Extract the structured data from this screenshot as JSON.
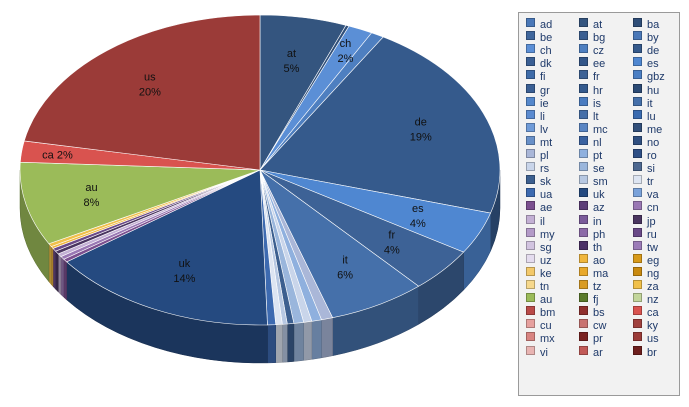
{
  "chart_data": {
    "type": "pie",
    "title": "",
    "style": "3d-exploded-perspective",
    "legend_position": "right",
    "legend_items": [
      {
        "label": "ad",
        "color": "#4a78b8"
      },
      {
        "label": "at",
        "color": "#34557f"
      },
      {
        "label": "ba",
        "color": "#2f4e78"
      },
      {
        "label": "be",
        "color": "#3f669c"
      },
      {
        "label": "bg",
        "color": "#3b5f92"
      },
      {
        "label": "by",
        "color": "#4a78b8"
      },
      {
        "label": "ch",
        "color": "#5b8fd6"
      },
      {
        "label": "cz",
        "color": "#4e7fc0"
      },
      {
        "label": "de",
        "color": "#355a8c"
      },
      {
        "label": "dk",
        "color": "#3a5f94"
      },
      {
        "label": "ee",
        "color": "#335689"
      },
      {
        "label": "es",
        "color": "#4f87d1"
      },
      {
        "label": "fi",
        "color": "#3e6ba8"
      },
      {
        "label": "fr",
        "color": "#3d6296"
      },
      {
        "label": "gbz",
        "color": "#4b7fc4"
      },
      {
        "label": "gr",
        "color": "#3a5f94"
      },
      {
        "label": "hr",
        "color": "#345a8e"
      },
      {
        "label": "hu",
        "color": "#2b4a75"
      },
      {
        "label": "ie",
        "color": "#5588cc"
      },
      {
        "label": "is",
        "color": "#4a7cc0"
      },
      {
        "label": "it",
        "color": "#4570aa"
      },
      {
        "label": "li",
        "color": "#5b8bd0"
      },
      {
        "label": "lt",
        "color": "#466fa8"
      },
      {
        "label": "lu",
        "color": "#3a6bb0"
      },
      {
        "label": "lv",
        "color": "#6f9bd8"
      },
      {
        "label": "mc",
        "color": "#5a86c4"
      },
      {
        "label": "me",
        "color": "#324f7a"
      },
      {
        "label": "mt",
        "color": "#6890c8"
      },
      {
        "label": "nl",
        "color": "#3a62a0"
      },
      {
        "label": "no",
        "color": "#2f4f80"
      },
      {
        "label": "pl",
        "color": "#aab7d8"
      },
      {
        "label": "pt",
        "color": "#8fb0de"
      },
      {
        "label": "ro",
        "color": "#2e4f86"
      },
      {
        "label": "rs",
        "color": "#c9d5ea"
      },
      {
        "label": "se",
        "color": "#9ab6dc"
      },
      {
        "label": "si",
        "color": "#4d6890"
      },
      {
        "label": "sk",
        "color": "#3c5f8f"
      },
      {
        "label": "sm",
        "color": "#b7c8e2"
      },
      {
        "label": "tr",
        "color": "#dde5f2"
      },
      {
        "label": "ua",
        "color": "#3d6ab0"
      },
      {
        "label": "uk",
        "color": "#254a80"
      },
      {
        "label": "va",
        "color": "#7aa2da"
      },
      {
        "label": "ae",
        "color": "#7b4f8f"
      },
      {
        "label": "az",
        "color": "#5d3d78"
      },
      {
        "label": "cn",
        "color": "#9a78b4"
      },
      {
        "label": "il",
        "color": "#c3b0d4"
      },
      {
        "label": "in",
        "color": "#7a5a9a"
      },
      {
        "label": "jp",
        "color": "#4a3560"
      },
      {
        "label": "my",
        "color": "#b39ac8"
      },
      {
        "label": "ph",
        "color": "#8c6aa8"
      },
      {
        "label": "ru",
        "color": "#6a4a88"
      },
      {
        "label": "sg",
        "color": "#d2c4e0"
      },
      {
        "label": "th",
        "color": "#4b2f66"
      },
      {
        "label": "tw",
        "color": "#9c7cb8"
      },
      {
        "label": "uz",
        "color": "#e4dcee"
      },
      {
        "label": "ao",
        "color": "#f0b63c"
      },
      {
        "label": "eg",
        "color": "#d89a1a"
      },
      {
        "label": "ke",
        "color": "#f3c96a"
      },
      {
        "label": "ma",
        "color": "#e8a82a"
      },
      {
        "label": "ng",
        "color": "#c98a10"
      },
      {
        "label": "tn",
        "color": "#f6d88c"
      },
      {
        "label": "tz",
        "color": "#d99b22"
      },
      {
        "label": "za",
        "color": "#f0c04a"
      },
      {
        "label": "au",
        "color": "#9bbb59"
      },
      {
        "label": "fj",
        "color": "#5a7a2a"
      },
      {
        "label": "nz",
        "color": "#c3d69b"
      },
      {
        "label": "bm",
        "color": "#b94a48"
      },
      {
        "label": "bs",
        "color": "#8f2f2d"
      },
      {
        "label": "ca",
        "color": "#d9534f"
      },
      {
        "label": "cu",
        "color": "#e6a09e"
      },
      {
        "label": "cw",
        "color": "#c97370"
      },
      {
        "label": "ky",
        "color": "#a0413e"
      },
      {
        "label": "mx",
        "color": "#d88481"
      },
      {
        "label": "pr",
        "color": "#7a2220"
      },
      {
        "label": "us",
        "color": "#9b3b38"
      },
      {
        "label": "vi",
        "color": "#e8b4b2"
      },
      {
        "label": "ar",
        "color": "#c25a57"
      },
      {
        "label": "br",
        "color": "#6e1f1d"
      }
    ],
    "slices": [
      {
        "label": "at",
        "value": 5.3,
        "color": "#34557f",
        "text": "at\n5%"
      },
      {
        "label": "ba",
        "value": 0.2,
        "color": "#2f4e78"
      },
      {
        "label": "ch",
        "value": 1.5,
        "color": "#5b8fd6",
        "text": "ch\n2%"
      },
      {
        "label": "cz",
        "value": 0.8,
        "color": "#4e7fc0"
      },
      {
        "label": "de",
        "value": 19.0,
        "color": "#355a8c",
        "text": "de\n19%"
      },
      {
        "label": "es",
        "value": 4.0,
        "color": "#4f87d1",
        "text": "es\n4%"
      },
      {
        "label": "fr",
        "value": 4.2,
        "color": "#3d6296",
        "text": "fr\n4%"
      },
      {
        "label": "it",
        "value": 6.0,
        "color": "#4570aa",
        "text": "it\n6%"
      },
      {
        "label": "pl",
        "value": 0.7,
        "color": "#aab7d8"
      },
      {
        "label": "pt",
        "value": 0.6,
        "color": "#8fb0de"
      },
      {
        "label": "rs",
        "value": 0.5,
        "color": "#c9d5ea"
      },
      {
        "label": "se",
        "value": 0.6,
        "color": "#9ab6dc"
      },
      {
        "label": "sk",
        "value": 0.4,
        "color": "#3c5f8f"
      },
      {
        "label": "sm",
        "value": 0.3,
        "color": "#b7c8e2"
      },
      {
        "label": "tr",
        "value": 0.4,
        "color": "#dde5f2"
      },
      {
        "label": "ua",
        "value": 0.5,
        "color": "#3d6ab0"
      },
      {
        "label": "uk",
        "value": 14.0,
        "color": "#254a80",
        "text": "uk\n14%"
      },
      {
        "label": "ae",
        "value": 0.3,
        "color": "#7b4f8f"
      },
      {
        "label": "cn",
        "value": 0.3,
        "color": "#9a78b4"
      },
      {
        "label": "il",
        "value": 0.3,
        "color": "#c3b0d4"
      },
      {
        "label": "jp",
        "value": 0.3,
        "color": "#4a3560"
      },
      {
        "label": "ru",
        "value": 0.3,
        "color": "#6a4a88"
      },
      {
        "label": "ao",
        "value": 0.2,
        "color": "#f0b63c"
      },
      {
        "label": "za",
        "value": 0.3,
        "color": "#f0c04a"
      },
      {
        "label": "au",
        "value": 7.9,
        "color": "#9bbb59",
        "text": "au\n8%"
      },
      {
        "label": "ca",
        "value": 2.0,
        "color": "#d9534f",
        "text": "ca 2%"
      },
      {
        "label": "us",
        "value": 20.0,
        "color": "#9b3b38",
        "text": "us\n20%"
      }
    ]
  }
}
